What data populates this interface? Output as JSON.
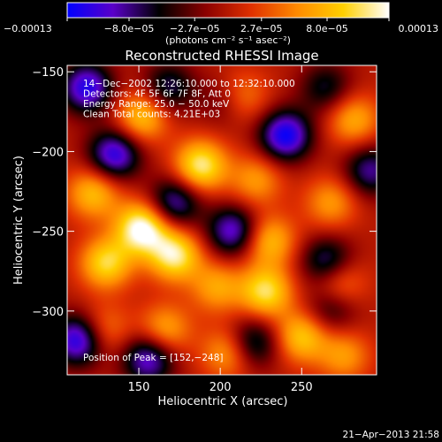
{
  "chart_data": {
    "type": "heatmap",
    "title": "Reconstructed RHESSI Image",
    "xlabel": "Heliocentric X (arcsec)",
    "ylabel": "Heliocentric Y (arcsec)",
    "xlim": [
      106,
      296
    ],
    "ylim": [
      -340,
      -146
    ],
    "x_ticks": [
      150,
      200,
      250
    ],
    "y_ticks": [
      -150,
      -200,
      -250,
      -300
    ],
    "x_tick_labels": [
      "150",
      "200",
      "250"
    ],
    "y_tick_labels": [
      "−150",
      "−200",
      "−250",
      "−300"
    ],
    "colorbar": {
      "min": -0.00013,
      "max": 0.00013,
      "tick_values": [
        -0.00013,
        -8e-05,
        -2.7e-05,
        2.7e-05,
        8e-05,
        0.00013
      ],
      "tick_labels": [
        "−0.00013",
        "−8.0e−05",
        "−2.7e−05",
        "2.7e−05",
        "8.0e−05",
        "0.00013"
      ],
      "units_label": "(photons cm⁻² s⁻¹ asec⁻²)",
      "colormap": [
        "#0000ff",
        "#5a00c8",
        "#000000",
        "#8a0000",
        "#e03000",
        "#ff8a00",
        "#ffd000",
        "#ffffff"
      ]
    },
    "annotations": [
      "14−Dec−2002 12:26:10.000 to 12:32:10.000",
      "Detectors: 4F 5F 6F 7F 8F, Att 0",
      "Energy Range: 25.0 − 50.0 keV",
      "Clean    Total counts: 4.21E+03"
    ],
    "peak_label": "Position of Peak = [152,−248]",
    "peak": {
      "x": 152,
      "y": -248,
      "value": 0.00013
    },
    "sources": [
      {
        "x": 152,
        "y": -248,
        "value": 0.00013
      },
      {
        "x": 172,
        "y": -265,
        "value": 0.00011
      },
      {
        "x": 130,
        "y": -270,
        "value": 9.5e-05
      },
      {
        "x": 188,
        "y": -209,
        "value": 0.00011
      },
      {
        "x": 122,
        "y": -226,
        "value": 8e-05
      },
      {
        "x": 152,
        "y": -178,
        "value": 8.5e-05
      },
      {
        "x": 212,
        "y": -166,
        "value": 7.5e-05
      },
      {
        "x": 282,
        "y": -180,
        "value": 7e-05
      },
      {
        "x": 222,
        "y": -218,
        "value": 6e-05
      },
      {
        "x": 230,
        "y": -256,
        "value": 8e-05
      },
      {
        "x": 268,
        "y": -232,
        "value": 6e-05
      },
      {
        "x": 228,
        "y": -288,
        "value": 0.0001
      },
      {
        "x": 272,
        "y": -282,
        "value": 7.5e-05
      },
      {
        "x": 166,
        "y": -312,
        "value": 7e-05
      },
      {
        "x": 250,
        "y": -316,
        "value": 8.5e-05
      },
      {
        "x": 276,
        "y": -328,
        "value": 6e-05
      },
      {
        "x": 198,
        "y": -285,
        "value": 6.5e-05
      },
      {
        "x": 128,
        "y": -312,
        "value": 5.5e-05
      },
      {
        "x": 205,
        "y": -326,
        "value": 7e-05
      },
      {
        "x": 240,
        "y": -190,
        "value": -0.00012
      },
      {
        "x": 208,
        "y": -250,
        "value": -0.0001
      },
      {
        "x": 172,
        "y": -232,
        "value": -9e-05
      },
      {
        "x": 135,
        "y": -202,
        "value": -0.00011
      },
      {
        "x": 118,
        "y": -160,
        "value": -0.00011
      },
      {
        "x": 266,
        "y": -270,
        "value": -9e-05
      },
      {
        "x": 168,
        "y": -160,
        "value": -7e-05
      },
      {
        "x": 220,
        "y": -320,
        "value": -8e-05
      },
      {
        "x": 268,
        "y": -298,
        "value": -6e-05
      },
      {
        "x": 113,
        "y": -318,
        "value": -0.00012
      },
      {
        "x": 156,
        "y": -330,
        "value": -0.0001
      },
      {
        "x": 205,
        "y": -168,
        "value": -6e-05
      },
      {
        "x": 292,
        "y": -212,
        "value": -8e-05
      },
      {
        "x": 265,
        "y": -160,
        "value": -6e-05
      }
    ]
  },
  "footer": {
    "timestamp": "21−Apr−2013 21:58"
  }
}
